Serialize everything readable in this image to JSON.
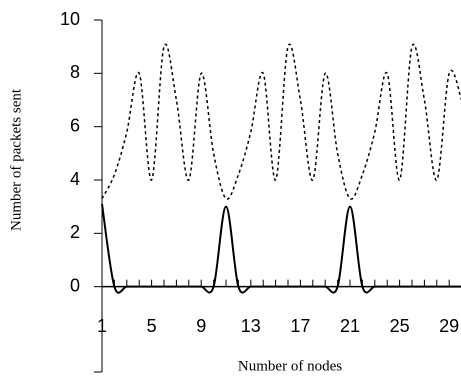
{
  "chart_data": {
    "type": "line",
    "ylabel": "Number of packets sent",
    "xlabel": "Number of nodes",
    "categories": [
      1,
      null,
      null,
      null,
      5,
      null,
      null,
      null,
      9,
      null,
      null,
      null,
      13,
      null,
      null,
      null,
      17,
      null,
      null,
      null,
      21,
      null,
      null,
      null,
      25,
      null,
      null,
      null,
      29,
      null
    ],
    "series": [
      {
        "color": "#000000",
        "dash": "dashed",
        "values": [
          3.3,
          4.2,
          5.8,
          8,
          4,
          9,
          7,
          4,
          8,
          5,
          3.3,
          4.2,
          5.8,
          8,
          4,
          9,
          7,
          4,
          8,
          5,
          3.3,
          4.2,
          5.8,
          8,
          4,
          9,
          7,
          4,
          8,
          7
        ]
      },
      {
        "color": "#000000",
        "dash": "solid",
        "values": [
          3.1,
          0,
          0,
          0,
          0,
          0,
          0,
          0,
          0,
          0,
          3,
          0,
          0,
          0,
          0,
          0,
          0,
          0,
          0,
          0,
          3,
          0,
          0,
          0,
          0,
          0,
          0,
          0,
          0,
          0
        ]
      }
    ],
    "ylim": [
      -3.2,
      10
    ],
    "yticks": [
      0,
      2,
      4,
      6,
      8,
      10
    ],
    "grid": false
  }
}
